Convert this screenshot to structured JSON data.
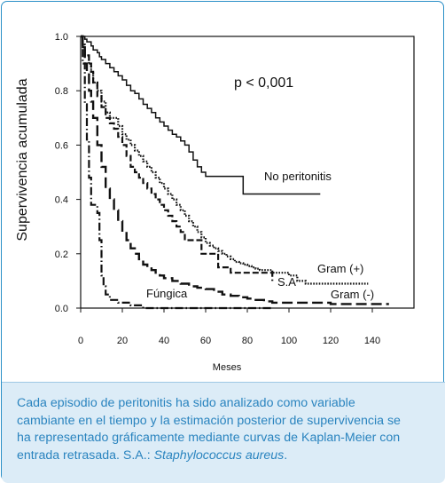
{
  "chart_data": {
    "type": "line",
    "subtype": "kaplan-meier step curves",
    "title": "",
    "xlabel": "Meses",
    "ylabel": "Supervivencia acumulada",
    "xlim": [
      0,
      160
    ],
    "ylim": [
      0,
      1.0
    ],
    "xticks": [
      "0",
      "20",
      "40",
      "60",
      "80",
      "100",
      "120",
      "140"
    ],
    "yticks": [
      "0.0",
      "0.2",
      "0.4",
      "0.6",
      "0.8",
      "1.0"
    ],
    "grid": false,
    "annotation": "p < 0,001",
    "series": [
      {
        "name": "No peritonitis",
        "style": "solid",
        "points": [
          [
            0,
            1.0
          ],
          [
            2,
            0.99
          ],
          [
            3,
            0.98
          ],
          [
            5,
            0.965
          ],
          [
            6,
            0.95
          ],
          [
            8,
            0.94
          ],
          [
            9,
            0.925
          ],
          [
            10,
            0.915
          ],
          [
            12,
            0.9
          ],
          [
            14,
            0.885
          ],
          [
            16,
            0.87
          ],
          [
            18,
            0.855
          ],
          [
            20,
            0.84
          ],
          [
            22,
            0.82
          ],
          [
            24,
            0.8
          ],
          [
            26,
            0.79
          ],
          [
            28,
            0.77
          ],
          [
            30,
            0.75
          ],
          [
            32,
            0.735
          ],
          [
            34,
            0.72
          ],
          [
            36,
            0.7
          ],
          [
            38,
            0.685
          ],
          [
            40,
            0.67
          ],
          [
            42,
            0.655
          ],
          [
            44,
            0.64
          ],
          [
            46,
            0.63
          ],
          [
            48,
            0.615
          ],
          [
            50,
            0.6
          ],
          [
            52,
            0.575
          ],
          [
            54,
            0.545
          ],
          [
            56,
            0.52
          ],
          [
            58,
            0.5
          ],
          [
            60,
            0.485
          ],
          [
            64,
            0.485
          ],
          [
            68,
            0.485
          ],
          [
            72,
            0.485
          ],
          [
            76,
            0.485
          ],
          [
            78,
            0.42
          ],
          [
            90,
            0.42
          ],
          [
            100,
            0.42
          ],
          [
            110,
            0.42
          ],
          [
            115,
            0.42
          ]
        ]
      },
      {
        "name": "Gram (+)",
        "style": "dotted",
        "points": [
          [
            0,
            1.0
          ],
          [
            1,
            0.97
          ],
          [
            2,
            0.93
          ],
          [
            4,
            0.9
          ],
          [
            5,
            0.87
          ],
          [
            6,
            0.83
          ],
          [
            8,
            0.8
          ],
          [
            10,
            0.76
          ],
          [
            12,
            0.72
          ],
          [
            14,
            0.7
          ],
          [
            16,
            0.7
          ],
          [
            18,
            0.67
          ],
          [
            20,
            0.64
          ],
          [
            22,
            0.62
          ],
          [
            24,
            0.6
          ],
          [
            26,
            0.58
          ],
          [
            28,
            0.56
          ],
          [
            30,
            0.54
          ],
          [
            32,
            0.52
          ],
          [
            34,
            0.5
          ],
          [
            36,
            0.48
          ],
          [
            38,
            0.46
          ],
          [
            40,
            0.44
          ],
          [
            42,
            0.42
          ],
          [
            44,
            0.4
          ],
          [
            46,
            0.38
          ],
          [
            48,
            0.36
          ],
          [
            50,
            0.34
          ],
          [
            52,
            0.32
          ],
          [
            54,
            0.3
          ],
          [
            56,
            0.28
          ],
          [
            58,
            0.26
          ],
          [
            60,
            0.24
          ],
          [
            62,
            0.23
          ],
          [
            64,
            0.22
          ],
          [
            66,
            0.21
          ],
          [
            68,
            0.2
          ],
          [
            70,
            0.19
          ],
          [
            72,
            0.18
          ],
          [
            74,
            0.17
          ],
          [
            76,
            0.165
          ],
          [
            78,
            0.16
          ],
          [
            80,
            0.155
          ],
          [
            82,
            0.15
          ],
          [
            84,
            0.145
          ],
          [
            86,
            0.14
          ],
          [
            88,
            0.14
          ],
          [
            92,
            0.13
          ],
          [
            96,
            0.13
          ],
          [
            100,
            0.12
          ],
          [
            104,
            0.1
          ],
          [
            108,
            0.09
          ],
          [
            115,
            0.09
          ],
          [
            125,
            0.09
          ],
          [
            138,
            0.09
          ]
        ]
      },
      {
        "name": "S.A",
        "style": "dashed",
        "points": [
          [
            0,
            1.0
          ],
          [
            1,
            0.96
          ],
          [
            2,
            0.93
          ],
          [
            4,
            0.9
          ],
          [
            5,
            0.87
          ],
          [
            6,
            0.83
          ],
          [
            8,
            0.78
          ],
          [
            10,
            0.74
          ],
          [
            12,
            0.7
          ],
          [
            14,
            0.68
          ],
          [
            16,
            0.66
          ],
          [
            18,
            0.63
          ],
          [
            20,
            0.6
          ],
          [
            22,
            0.56
          ],
          [
            24,
            0.52
          ],
          [
            26,
            0.5
          ],
          [
            28,
            0.48
          ],
          [
            30,
            0.46
          ],
          [
            32,
            0.44
          ],
          [
            34,
            0.42
          ],
          [
            36,
            0.4
          ],
          [
            38,
            0.38
          ],
          [
            40,
            0.36
          ],
          [
            42,
            0.34
          ],
          [
            44,
            0.32
          ],
          [
            46,
            0.3
          ],
          [
            48,
            0.28
          ],
          [
            50,
            0.25
          ],
          [
            54,
            0.25
          ],
          [
            58,
            0.2
          ],
          [
            62,
            0.2
          ],
          [
            66,
            0.15
          ],
          [
            72,
            0.13
          ],
          [
            80,
            0.13
          ],
          [
            88,
            0.13
          ],
          [
            92,
            0.1
          ]
        ]
      },
      {
        "name": "Gram (-)",
        "style": "long-dash",
        "points": [
          [
            0,
            1.0
          ],
          [
            1,
            0.96
          ],
          [
            2,
            0.9
          ],
          [
            3,
            0.86
          ],
          [
            4,
            0.8
          ],
          [
            5,
            0.76
          ],
          [
            6,
            0.7
          ],
          [
            8,
            0.6
          ],
          [
            10,
            0.52
          ],
          [
            12,
            0.44
          ],
          [
            14,
            0.4
          ],
          [
            16,
            0.36
          ],
          [
            18,
            0.32
          ],
          [
            20,
            0.28
          ],
          [
            22,
            0.25
          ],
          [
            24,
            0.22
          ],
          [
            26,
            0.2
          ],
          [
            28,
            0.18
          ],
          [
            30,
            0.16
          ],
          [
            32,
            0.15
          ],
          [
            34,
            0.14
          ],
          [
            36,
            0.13
          ],
          [
            38,
            0.12
          ],
          [
            40,
            0.11
          ],
          [
            44,
            0.1
          ],
          [
            48,
            0.09
          ],
          [
            52,
            0.08
          ],
          [
            56,
            0.075
          ],
          [
            60,
            0.07
          ],
          [
            64,
            0.06
          ],
          [
            68,
            0.05
          ],
          [
            72,
            0.045
          ],
          [
            76,
            0.04
          ],
          [
            80,
            0.035
          ],
          [
            84,
            0.03
          ],
          [
            88,
            0.025
          ],
          [
            92,
            0.02
          ],
          [
            100,
            0.02
          ],
          [
            110,
            0.02
          ],
          [
            120,
            0.015
          ],
          [
            130,
            0.015
          ],
          [
            140,
            0.015
          ],
          [
            148,
            0.015
          ]
        ]
      },
      {
        "name": "Fúngica",
        "style": "dash-dot",
        "points": [
          [
            0,
            1.0
          ],
          [
            1,
            0.9
          ],
          [
            2,
            0.75
          ],
          [
            3,
            0.62
          ],
          [
            4,
            0.48
          ],
          [
            5,
            0.38
          ],
          [
            6,
            0.38
          ],
          [
            7,
            0.38
          ],
          [
            8,
            0.35
          ],
          [
            9,
            0.25
          ],
          [
            10,
            0.12
          ],
          [
            11,
            0.08
          ],
          [
            12,
            0.05
          ],
          [
            14,
            0.03
          ],
          [
            18,
            0.02
          ],
          [
            24,
            0.01
          ],
          [
            30,
            0.0
          ],
          [
            40,
            0.0
          ],
          [
            60,
            0.0
          ],
          [
            80,
            0.0
          ],
          [
            92,
            0.0
          ]
        ]
      }
    ]
  },
  "caption": {
    "line1": "Cada episodio de peritonitis ha sido analizado como variable",
    "line2": "cambiante en el tiempo y la estimación posterior de supervivencia se",
    "line3": "ha representado gráficamente mediante curvas de Kaplan-Meier con",
    "line4_prefix": "entrada retrasada. S.A.: ",
    "line4_italic": "Staphylococcus aureus",
    "line4_suffix": "."
  },
  "colors": {
    "frame_border": "#2a8fc7",
    "caption_bg": "#dcecf7",
    "caption_text": "#2a84bf",
    "chart_ink": "#111111"
  }
}
